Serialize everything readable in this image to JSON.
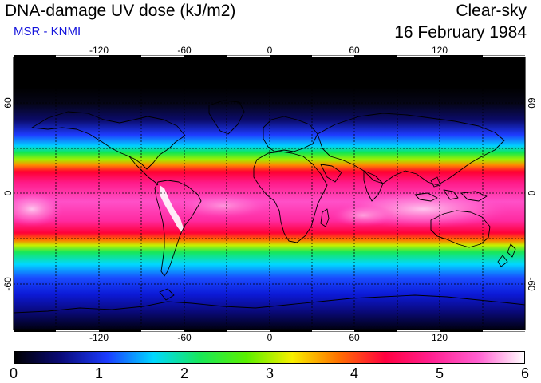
{
  "header": {
    "title": "DNA-damage UV dose (kJ/m2)",
    "source": "MSR - KNMI",
    "condition": "Clear-sky",
    "date": "16 February 1984"
  },
  "map": {
    "projection": "equirectangular",
    "lon_range": [
      -180,
      180
    ],
    "lat_range": [
      -90,
      90
    ],
    "graticule": "dashed every 30 degrees",
    "lon_ticks": [
      "-120",
      "-60",
      "0",
      "60",
      "120"
    ],
    "lat_ticks": [
      "60",
      "0",
      "-60"
    ]
  },
  "colorbar": {
    "min": 0,
    "max": 6,
    "labels": [
      "0",
      "1",
      "2",
      "3",
      "4",
      "5",
      "6"
    ],
    "colors": [
      "#000000",
      "#0a0a78",
      "#1b3cff",
      "#00d8ff",
      "#18e85a",
      "#5af000",
      "#f8f000",
      "#ff7000",
      "#ff0040",
      "#ff2090",
      "#ff60d0",
      "#ffffff"
    ]
  }
}
